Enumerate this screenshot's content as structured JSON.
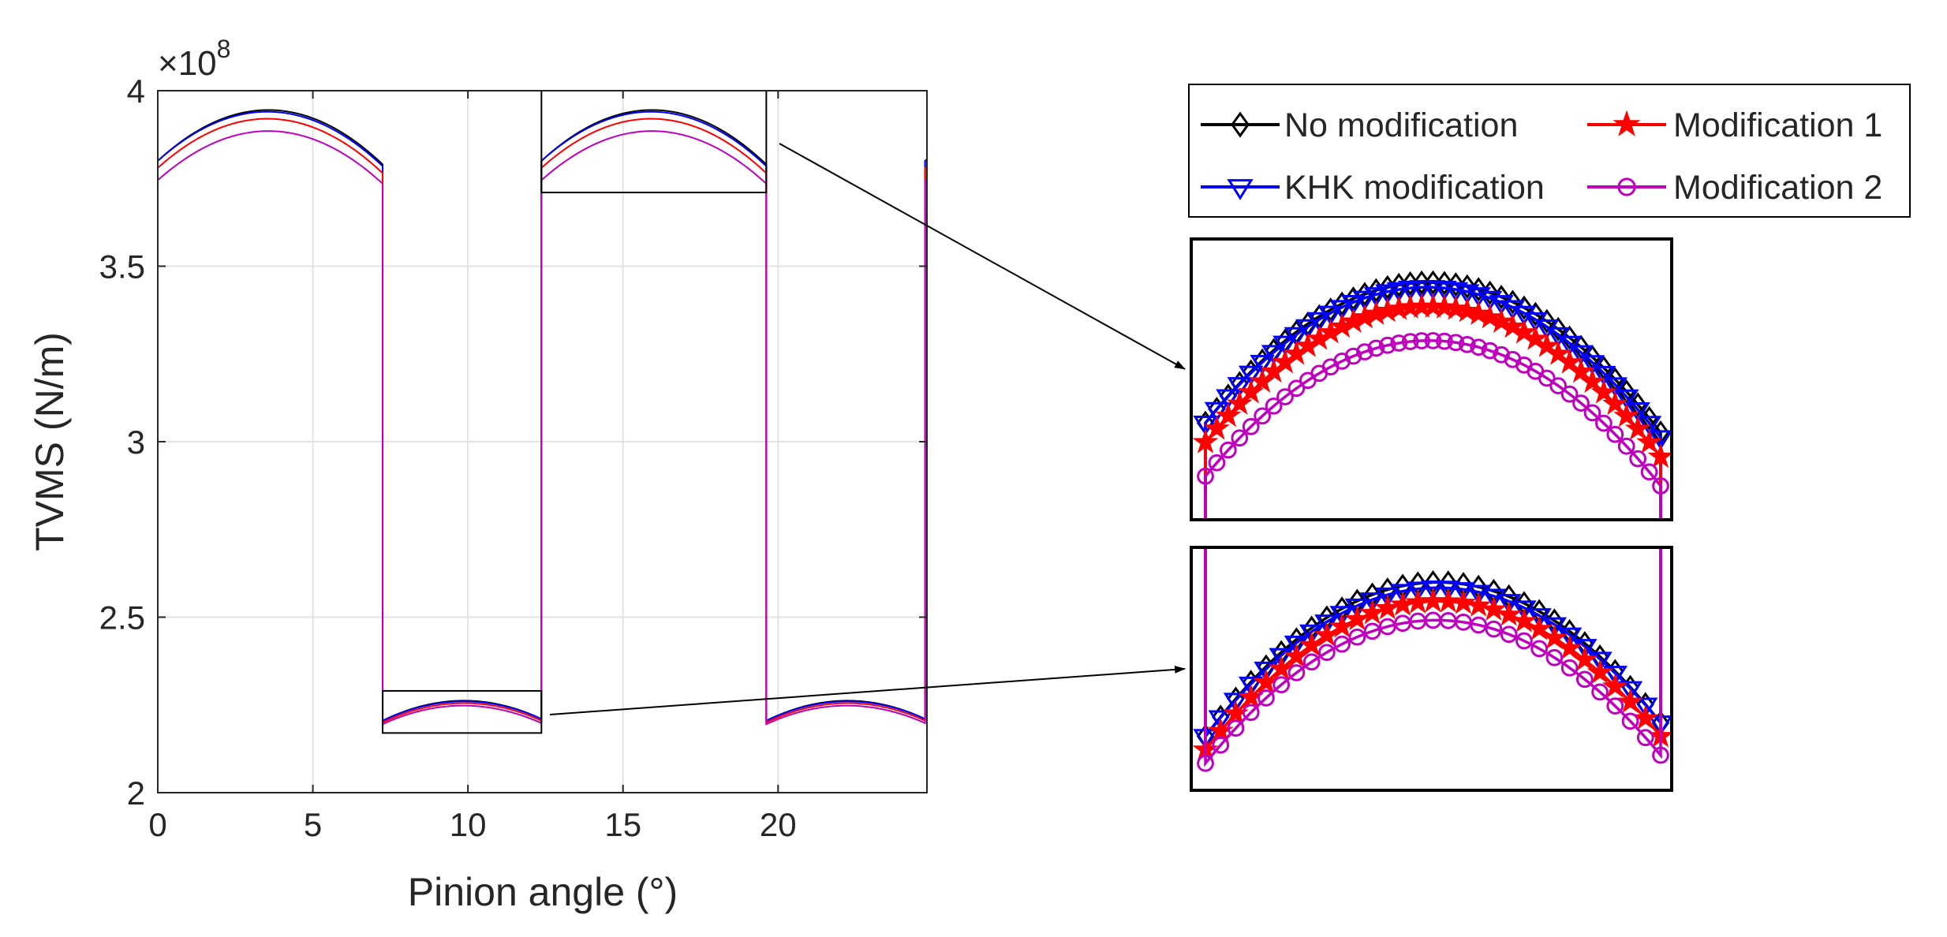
{
  "chart_data": {
    "type": "line",
    "title": "",
    "xlabel": "Pinion angle (°)",
    "ylabel": "TVMS (N/m)",
    "y_exponent_label": "×10",
    "y_exponent": "8",
    "xlim": [
      0,
      24.8
    ],
    "ylim": [
      2,
      4
    ],
    "x_ticks": [
      0,
      5,
      10,
      15,
      20
    ],
    "x_tick_labels": [
      "0",
      "5",
      "10",
      "15",
      "20"
    ],
    "y_ticks": [
      2,
      2.5,
      3,
      3.5,
      4
    ],
    "y_tick_labels": [
      "2",
      "2.5",
      "3",
      "3.5",
      "4"
    ],
    "grid": true,
    "mesh_period_deg": 12.37,
    "double_tooth_zone_deg": [
      0,
      7.25
    ],
    "single_tooth_zone_deg": [
      7.25,
      12.37
    ],
    "series": [
      {
        "name": "No modification",
        "color": "#000000",
        "marker": "diamond",
        "double_zone_start": 3.8,
        "double_zone_peak": 3.945,
        "double_zone_end": 3.79,
        "single_zone_start": 2.205,
        "single_zone_peak": 2.262,
        "single_zone_end": 2.21
      },
      {
        "name": "KHK modification",
        "color": "#0000ff",
        "marker": "triangle-down",
        "double_zone_start": 3.8,
        "double_zone_peak": 3.94,
        "double_zone_end": 3.785,
        "single_zone_start": 2.205,
        "single_zone_peak": 2.26,
        "single_zone_end": 2.21
      },
      {
        "name": "Modification 1",
        "color": "#ff0000",
        "marker": "pentagram",
        "double_zone_start": 3.78,
        "double_zone_peak": 3.92,
        "double_zone_end": 3.765,
        "single_zone_start": 2.2,
        "single_zone_peak": 2.255,
        "single_zone_end": 2.205
      },
      {
        "name": "Modification 2",
        "color": "#bf00bf",
        "marker": "circle",
        "double_zone_start": 3.745,
        "double_zone_peak": 3.885,
        "double_zone_end": 3.735,
        "single_zone_start": 2.195,
        "single_zone_peak": 2.248,
        "single_zone_end": 2.198
      }
    ],
    "legend_columns": [
      [
        "No modification",
        "KHK modification"
      ],
      [
        "Modification 1",
        "Modification 2"
      ]
    ],
    "legend_position": "top-right",
    "zoom_regions": [
      {
        "x_range": [
          12.37,
          19.62
        ],
        "y_range": [
          3.71,
          4.0
        ],
        "inset": "top"
      },
      {
        "x_range": [
          7.25,
          12.37
        ],
        "y_range": [
          2.17,
          2.29
        ],
        "inset": "bottom"
      }
    ]
  }
}
